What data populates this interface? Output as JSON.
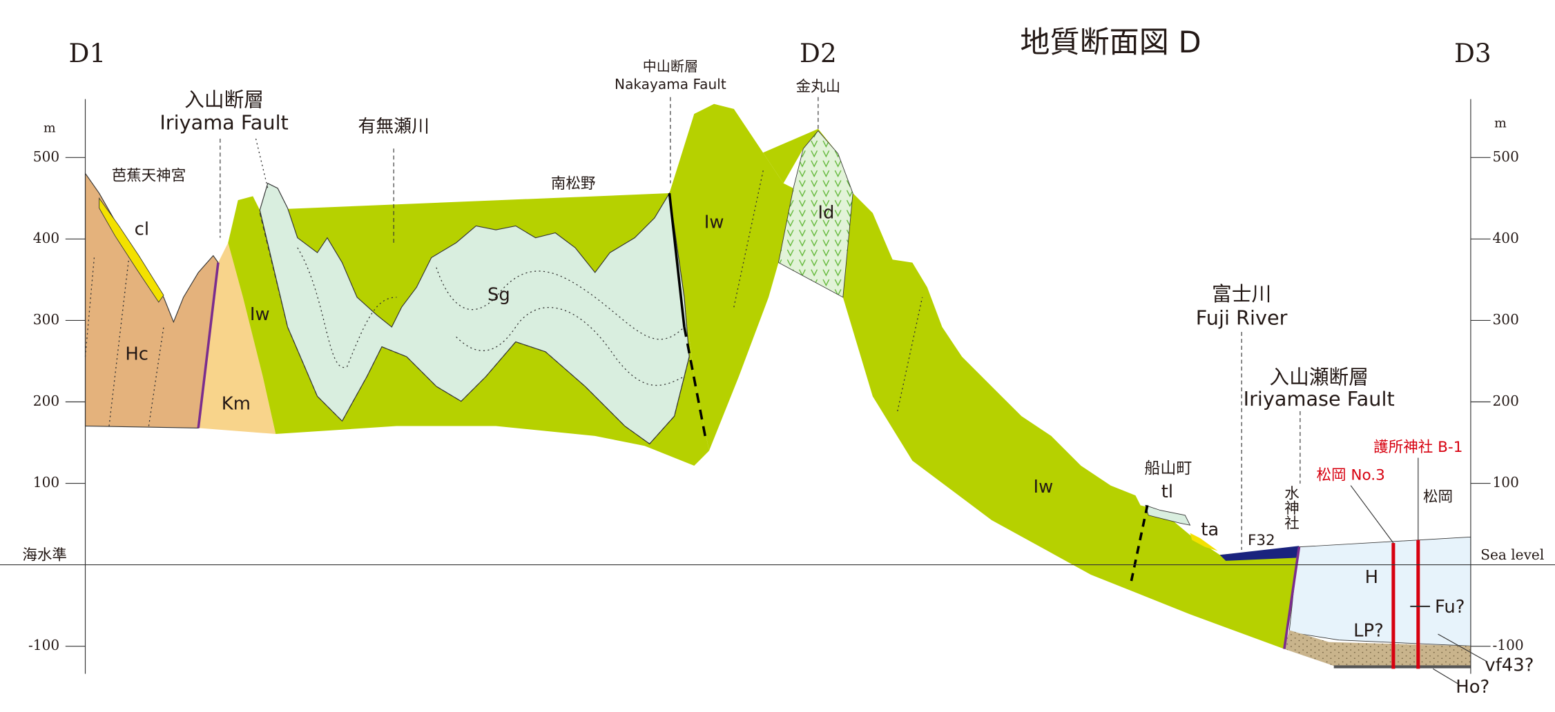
{
  "title": "地質断面図 D",
  "section_points": [
    "D1",
    "D2",
    "D3"
  ],
  "axis": {
    "unit_left": "m",
    "unit_right": "m",
    "left_ticks": [
      500,
      400,
      300,
      200,
      100,
      -100
    ],
    "right_ticks": [
      500,
      400,
      300,
      200,
      100,
      -100
    ]
  },
  "sea_level": {
    "label_ja": "海水準",
    "label_en": "Sea level"
  },
  "faults": [
    {
      "ja": "入山断層",
      "en": "Iriyama Fault"
    },
    {
      "ja": "中山断層",
      "en": "Nakayama Fault"
    },
    {
      "ja": "入山瀬断層",
      "en": "Iriyamase Fault"
    }
  ],
  "rivers": [
    {
      "ja": "有無瀬川"
    },
    {
      "ja": "富士川",
      "en": "Fuji River"
    }
  ],
  "places": [
    "芭蕉天神宮",
    "南松野",
    "金丸山",
    "船山町",
    "水神社",
    "松岡"
  ],
  "boreholes": [
    "護所神社 B-1",
    "松岡 No.3"
  ],
  "units": [
    "cl",
    "Hc",
    "Km",
    "Iw",
    "Sg",
    "Iw",
    "Id",
    "Iw",
    "tl",
    "ta",
    "F32",
    "H",
    "LP?",
    "Fu?",
    "vf43?",
    "Ho?"
  ]
}
